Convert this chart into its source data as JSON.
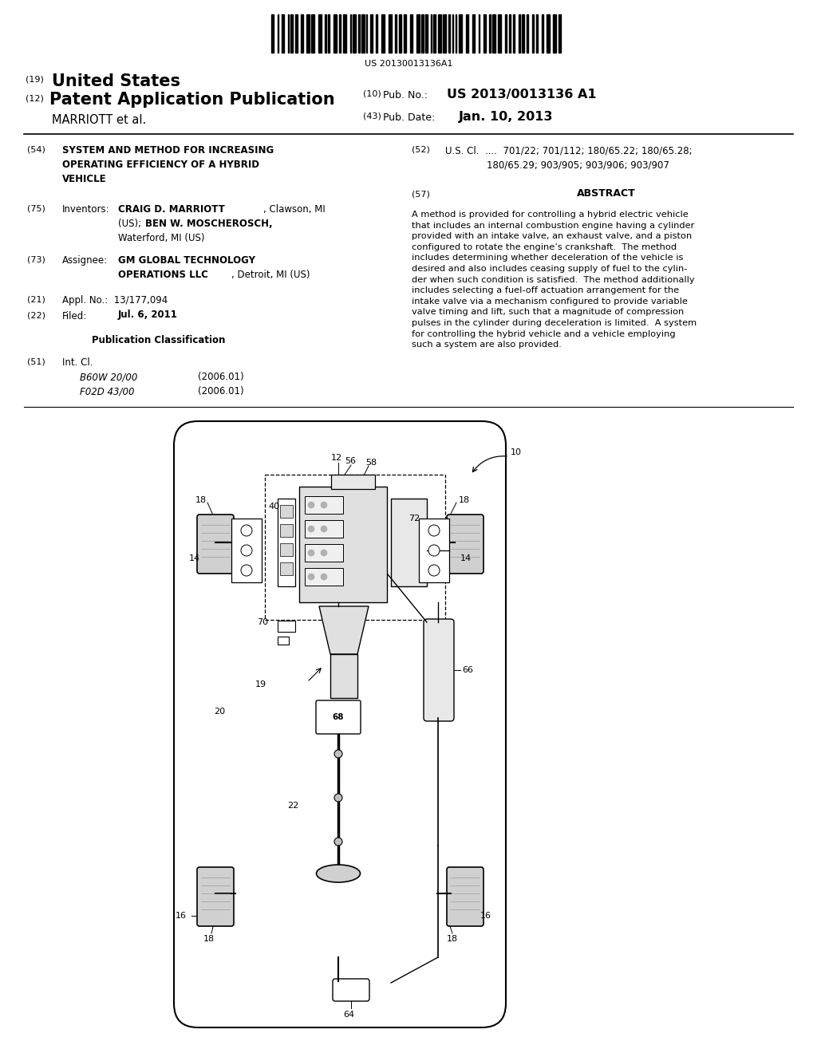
{
  "bg_color": "#ffffff",
  "barcode_text": "US 20130013136A1",
  "field_54": "SYSTEM AND METHOD FOR INCREASING\nOPERATING EFFICIENCY OF A HYBRID\nVEHICLE",
  "field_75_value": "CRAIG D. MARRIOTT, Clawson, MI\n(US); BEN W. MOSCHEROSCH,\nWaterford, MI (US)",
  "field_73_value": "GM GLOBAL TECHNOLOGY\nOPERATIONS LLC, Detroit, MI (US)",
  "field_21": "Appl. No.:  13/177,094",
  "field_22_value": "Jul. 6, 2011",
  "pub_class_title": "Publication Classification",
  "field_51_a": "B60W 20/00",
  "field_51_a_date": "(2006.01)",
  "field_51_b": "F02D 43/00",
  "field_51_b_date": "(2006.01)",
  "field_52_line1": "U.S. Cl.  ....  701/22; 701/112; 180/65.22; 180/65.28;",
  "field_52_line2": "180/65.29; 903/905; 903/906; 903/907",
  "abstract_text": "A method is provided for controlling a hybrid electric vehicle\nthat includes an internal combustion engine having a cylinder\nprovided with an intake valve, an exhaust valve, and a piston\nconfigured to rotate the engine’s crankshaft.  The method\nincludes determining whether deceleration of the vehicle is\ndesired and also includes ceasing supply of fuel to the cylin-\nder when such condition is satisfied.  The method additionally\nincludes selecting a fuel-off actuation arrangement for the\nintake valve via a mechanism configured to provide variable\nvalve timing and lift, such that a magnitude of compression\npulses in the cylinder during deceleration is limited.  A system\nfor controlling the hybrid vehicle and a vehicle employing\nsuch a system are also provided.",
  "pub_no": "US 2013/0013136 A1",
  "pub_date": "Jan. 10, 2013"
}
